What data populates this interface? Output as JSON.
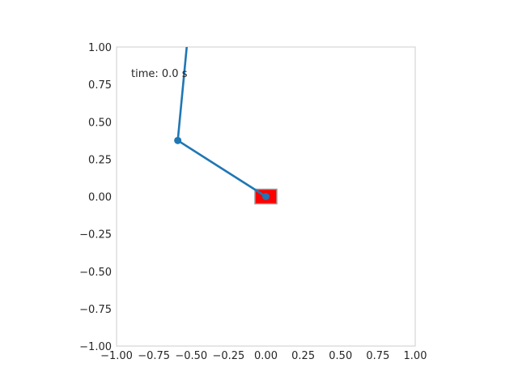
{
  "chart_data": {
    "type": "scatter",
    "title": "",
    "xlabel": "",
    "ylabel": "",
    "xlim": [
      -1.0,
      1.0
    ],
    "ylim": [
      -1.0,
      1.0
    ],
    "grid": false,
    "x_ticks": [
      -1.0,
      -0.75,
      -0.5,
      -0.25,
      0.0,
      0.25,
      0.5,
      0.75,
      1.0
    ],
    "y_ticks": [
      -1.0,
      -0.75,
      -0.5,
      -0.25,
      0.0,
      0.25,
      0.5,
      0.75,
      1.0
    ],
    "x_tick_labels": [
      "−1.00",
      "−0.75",
      "−0.50",
      "−0.25",
      "0.00",
      "0.25",
      "0.50",
      "0.75",
      "1.00"
    ],
    "y_tick_labels": [
      "−1.00",
      "−0.75",
      "−0.50",
      "−0.25",
      "0.00",
      "0.25",
      "0.50",
      "0.75",
      "1.00"
    ],
    "cart": {
      "x": 0.0,
      "y": 0.0,
      "color": "#ff0000"
    },
    "pendulum": {
      "points": [
        {
          "x": 0.0,
          "y": 0.0
        },
        {
          "x": -0.59,
          "y": 0.375
        },
        {
          "x": -0.53,
          "y": 1.0
        }
      ],
      "color": "#1f77b4"
    },
    "annotation": "time: 0.0 s"
  }
}
